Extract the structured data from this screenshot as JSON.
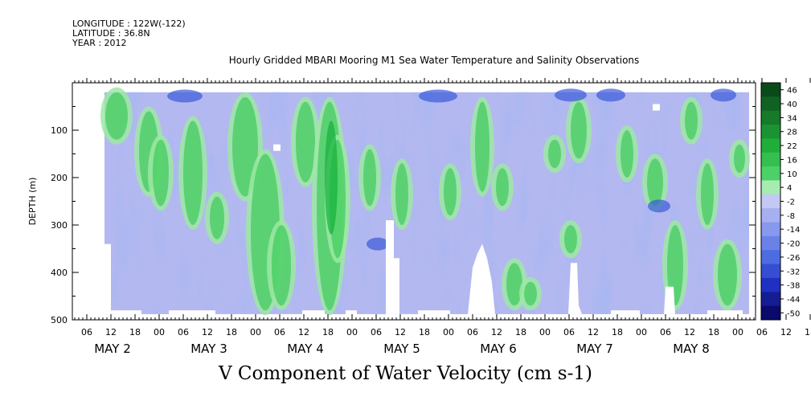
{
  "header": {
    "longitude": "LONGITUDE : 122W(-122)",
    "latitude": "LATITUDE : 36.8N",
    "year": "YEAR : 2012"
  },
  "chart_data": {
    "type": "heatmap",
    "title": "Hourly Gridded MBARI Mooring M1 Sea Water Temperature and Salinity Observations",
    "xlabel": "V Component of Water Velocity (cm s-1)",
    "ylabel": "DEPTH (m)",
    "ylim": [
      500,
      0
    ],
    "y_ticks": [
      100,
      200,
      300,
      400,
      500
    ],
    "x_hour_ticks": [
      "06",
      "12",
      "18",
      "00",
      "06",
      "12",
      "18",
      "00",
      "06",
      "12",
      "18",
      "00",
      "06",
      "12",
      "18",
      "00",
      "06",
      "12",
      "18",
      "00",
      "06",
      "12",
      "18",
      "00",
      "06",
      "12",
      "18",
      "00",
      "06",
      "12",
      "18",
      "00"
    ],
    "x_day_labels": [
      "MAY  2",
      "MAY  3",
      "MAY  4",
      "MAY  5",
      "MAY  6",
      "MAY  7",
      "MAY  8"
    ],
    "colorbar_levels": [
      46,
      40,
      34,
      28,
      22,
      16,
      10,
      4,
      -2,
      -8,
      -14,
      -20,
      -26,
      -32,
      -38,
      -44,
      -50
    ],
    "colorbar_labels": [
      "46",
      "40",
      "34",
      "28",
      "22",
      "16",
      "10",
      "4",
      "-2",
      "-8",
      "-14",
      "-20",
      "-26",
      "-32",
      "-38",
      "-44",
      "-50"
    ],
    "colors": {
      "positive_high": "#0a4a1a",
      "positive_mid": "#22c444",
      "positive_low": "#9ee8a4",
      "neutral": "#b4b8f0",
      "negative_mid": "#5a78e6",
      "negative_high": "#0a0a6a"
    }
  }
}
